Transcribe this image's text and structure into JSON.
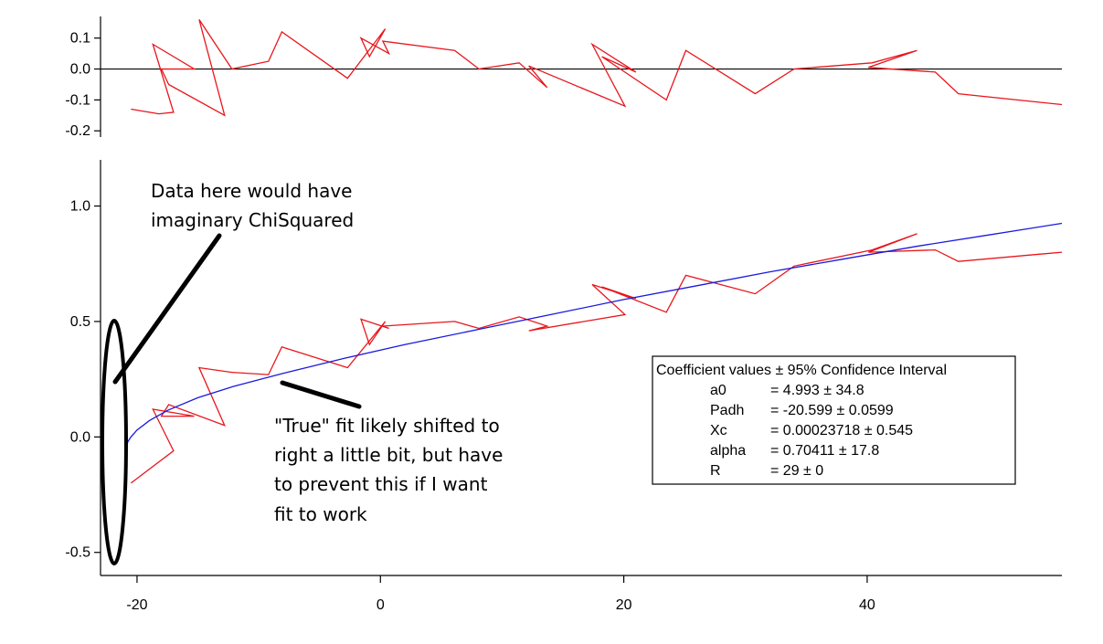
{
  "chart_data": [
    {
      "type": "line",
      "panel": "residuals",
      "title": "",
      "xlabel": "",
      "ylabel": "",
      "xlim": [
        -23,
        56
      ],
      "ylim": [
        -0.22,
        0.17
      ],
      "grid": false,
      "y_ticks": [
        "0.1",
        "0.0",
        "-0.1",
        "-0.2"
      ],
      "y_tick_values": [
        0.1,
        0.0,
        -0.1,
        -0.2
      ],
      "zero_line": 0,
      "series": [
        {
          "color": "#e8161c",
          "x": [
            -20.5,
            -18.2,
            -17.0,
            -18.7,
            -15.3,
            -18.0,
            -17.4,
            -12.8,
            -14.9,
            -12.2,
            -9.2,
            -8.1,
            -2.7,
            0.4,
            -0.9,
            -1.6,
            0.7,
            0.2,
            6.1,
            8.1,
            11.4,
            13.7,
            12.2,
            20.1,
            17.4,
            21.0,
            18.2,
            23.5,
            25.1,
            30.8,
            34.0,
            40.4,
            44.1,
            40.1,
            45.6,
            47.5,
            56.0
          ],
          "y": [
            -0.13,
            -0.145,
            -0.14,
            0.08,
            0.0,
            0.0,
            -0.05,
            -0.15,
            0.16,
            0.0,
            0.025,
            0.12,
            -0.03,
            0.13,
            0.04,
            0.1,
            0.05,
            0.09,
            0.06,
            0.0,
            0.02,
            -0.06,
            0.01,
            -0.12,
            0.08,
            -0.01,
            0.04,
            -0.1,
            0.06,
            -0.08,
            0.0,
            0.02,
            0.06,
            0.005,
            -0.01,
            -0.08,
            -0.115
          ]
        }
      ]
    },
    {
      "type": "line",
      "panel": "main",
      "title": "",
      "xlabel": "",
      "ylabel": "",
      "xlim": [
        -23,
        56
      ],
      "ylim": [
        -0.6,
        1.2
      ],
      "grid": false,
      "x_ticks": [
        "-20",
        "0",
        "20",
        "40"
      ],
      "x_tick_values": [
        -20,
        0,
        20,
        40
      ],
      "y_ticks": [
        "1.0",
        "0.5",
        "0.0",
        "-0.5"
      ],
      "y_tick_values": [
        1.0,
        0.5,
        0.0,
        -0.5
      ],
      "series": [
        {
          "color": "#e8161c",
          "x": [
            -20.5,
            -17.0,
            -18.7,
            -15.3,
            -18.0,
            -17.4,
            -12.8,
            -14.9,
            -12.2,
            -9.2,
            -8.1,
            -2.7,
            0.4,
            -0.9,
            -1.6,
            0.7,
            0.2,
            6.1,
            8.1,
            11.4,
            13.7,
            12.2,
            20.1,
            17.4,
            21.0,
            18.2,
            23.5,
            25.1,
            30.8,
            34.0,
            40.4,
            44.1,
            40.1,
            45.6,
            47.5,
            56.0
          ],
          "y": [
            -0.2,
            -0.06,
            0.12,
            0.09,
            0.09,
            0.14,
            0.05,
            0.3,
            0.28,
            0.27,
            0.39,
            0.3,
            0.5,
            0.4,
            0.51,
            0.47,
            0.48,
            0.5,
            0.47,
            0.52,
            0.48,
            0.46,
            0.53,
            0.66,
            0.6,
            0.65,
            0.54,
            0.7,
            0.62,
            0.74,
            0.81,
            0.88,
            0.8,
            0.81,
            0.76,
            0.8
          ]
        },
        {
          "color": "#1a1adc",
          "x": [
            -20.99,
            -20.9,
            -20.75,
            -20.5,
            -20.0,
            -19.0,
            -17.5,
            -15.0,
            -12.0,
            -8.0,
            -3.0,
            2.0,
            8.0,
            14.0,
            20.0,
            26.0,
            32.0,
            38.0,
            44.0,
            50.0,
            56.0
          ],
          "y": [
            -0.07,
            -0.045,
            -0.02,
            0.0,
            0.03,
            0.07,
            0.115,
            0.17,
            0.22,
            0.275,
            0.34,
            0.4,
            0.465,
            0.53,
            0.595,
            0.655,
            0.715,
            0.77,
            0.825,
            0.875,
            0.925
          ]
        }
      ]
    }
  ],
  "annotations": {
    "top_note": [
      "Data here would have",
      "imaginary ChiSquared"
    ],
    "bottom_note": [
      "\"True\" fit likely shifted to",
      "right a little bit, but have",
      "to prevent this if I want",
      "fit to work"
    ]
  },
  "legend": {
    "header": "Coefficient values ± 95% Confidence Interval",
    "rows": [
      {
        "name": "a0",
        "value": "= 4.993 ± 34.8"
      },
      {
        "name": "Padh",
        "value": "= -20.599 ± 0.0599"
      },
      {
        "name": "Xc",
        "value": "= 0.00023718 ± 0.545"
      },
      {
        "name": "alpha",
        "value": "= 0.70411 ± 17.8"
      },
      {
        "name": "R",
        "value": "= 29 ± 0"
      }
    ]
  }
}
